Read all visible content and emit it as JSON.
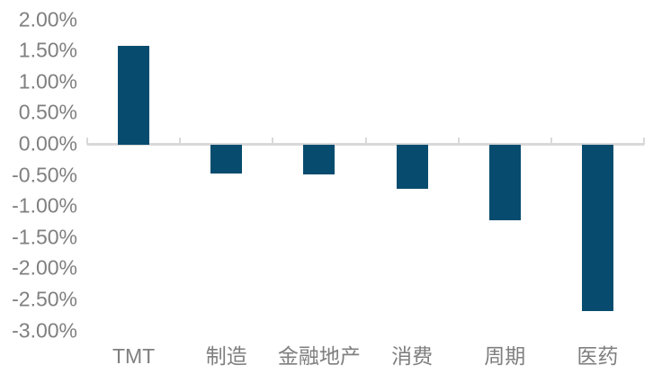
{
  "chart_data": {
    "type": "bar",
    "title": "",
    "xlabel": "",
    "ylabel": "",
    "categories": [
      "TMT",
      "制造",
      "金融地产",
      "消费",
      "周期",
      "医药"
    ],
    "values": [
      1.58,
      -0.46,
      -0.48,
      -0.71,
      -1.22,
      -2.67
    ],
    "value_unit": "%",
    "ylim": [
      -3.0,
      2.0
    ],
    "ytick_step": 0.5,
    "ytick_labels": [
      "2.00%",
      "1.50%",
      "1.00%",
      "0.50%",
      "0.00%",
      "-0.50%",
      "-1.00%",
      "-1.50%",
      "-2.00%",
      "-2.50%",
      "-3.00%"
    ],
    "grid": false,
    "legend": false,
    "bar_color": "#074c6e",
    "axis_line_color": "#d9d9d9",
    "label_color": "#7f7f7f"
  }
}
